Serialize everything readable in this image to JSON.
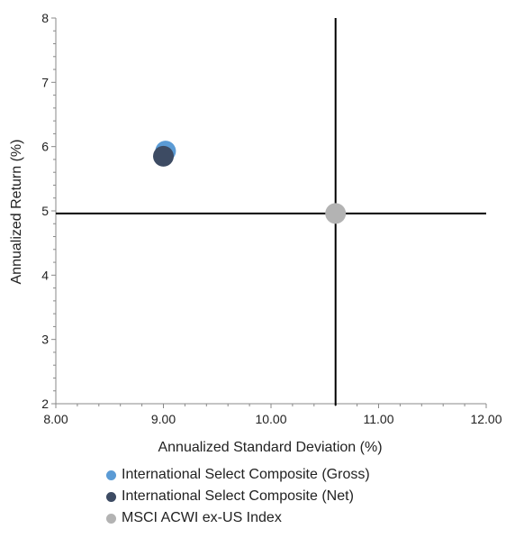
{
  "chart_data": {
    "type": "scatter",
    "title": "",
    "xlabel": "Annualized Standard Deviation (%)",
    "ylabel": "Annualized Return  (%)",
    "xlim": [
      8,
      12
    ],
    "ylim": [
      2,
      8
    ],
    "xticks": [
      "8.00",
      "9.00",
      "10.00",
      "11.00",
      "12.00"
    ],
    "yticks": [
      "2",
      "3",
      "4",
      "5",
      "6",
      "7",
      "8"
    ],
    "crosshair": {
      "x": 10.6,
      "y": 4.96
    },
    "grid": false,
    "legend_position": "bottom",
    "series": [
      {
        "name": "International Select Composite (Gross)",
        "color": "#5b9bd5",
        "points": [
          [
            9.02,
            5.93
          ]
        ]
      },
      {
        "name": "International Select Composite (Net)",
        "color": "#3d4b63",
        "points": [
          [
            9.0,
            5.85
          ]
        ]
      },
      {
        "name": "MSCI ACWI ex-US Index",
        "color": "#b3b3b3",
        "points": [
          [
            10.6,
            4.96
          ]
        ]
      }
    ]
  }
}
